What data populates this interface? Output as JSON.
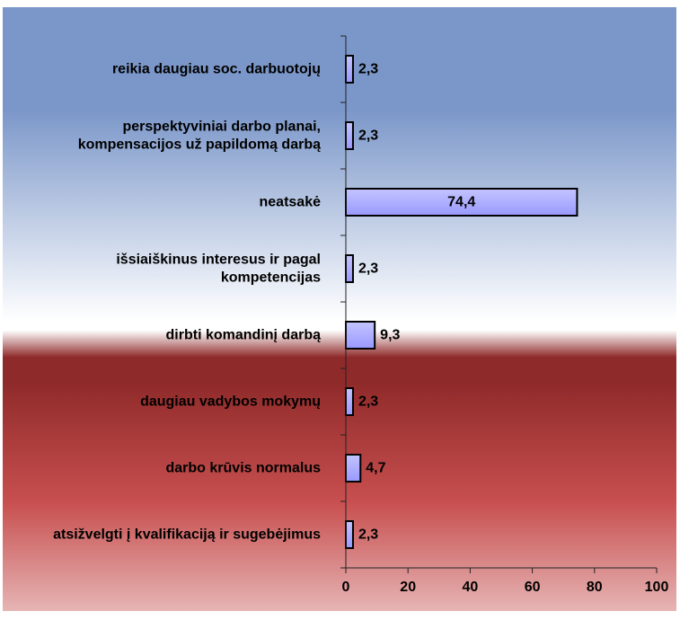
{
  "chart_data": {
    "type": "bar",
    "orientation": "horizontal",
    "categories": [
      [
        "reikia daugiau soc. darbuotojų"
      ],
      [
        "perspektyviniai darbo planai,",
        "kompensacijos už papildomą darbą"
      ],
      [
        "neatsakė"
      ],
      [
        "išsiaiškinus interesus ir pagal",
        "kompetencijas"
      ],
      [
        "dirbti komandinį darbą"
      ],
      [
        "daugiau vadybos mokymų"
      ],
      [
        "darbo krūvis normalus"
      ],
      [
        "atsižvelgti į kvalifikaciją ir sugebėjimus"
      ]
    ],
    "values": [
      2.3,
      2.3,
      74.4,
      2.3,
      9.3,
      2.3,
      4.7,
      2.3
    ],
    "value_labels": [
      "2,3",
      "2,3",
      "74,4",
      "2,3",
      "9,3",
      "2,3",
      "4,7",
      "2,3"
    ],
    "xlim": [
      0,
      100
    ],
    "x_ticks": [
      0,
      20,
      40,
      60,
      80,
      100
    ],
    "x_tick_labels": [
      "0",
      "20",
      "40",
      "60",
      "80",
      "100"
    ],
    "grid": false,
    "legend": "none",
    "colors": {
      "bar_fill": "#9999ff",
      "bar_stroke": "#000000",
      "top_blue": "#7b97c9",
      "mid_white": "#ffffff",
      "band_dark_red": "#8f2a2a",
      "low_red": "#c84f4f",
      "bottom_pink": "#e6b4b4"
    }
  }
}
